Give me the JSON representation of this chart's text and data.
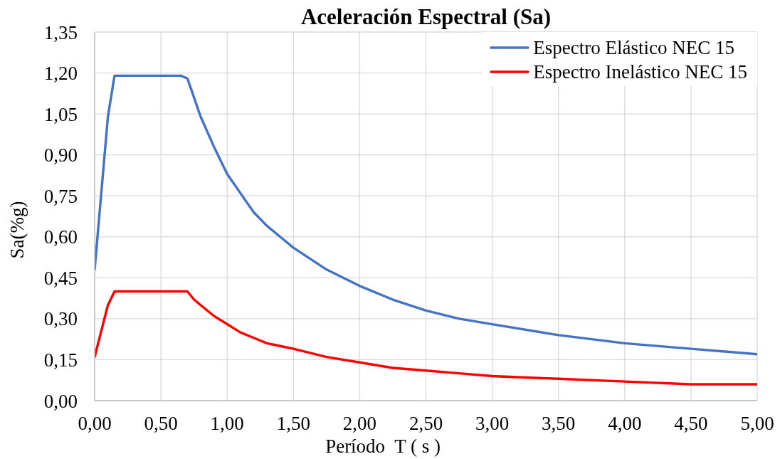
{
  "chart_data": {
    "type": "line",
    "title": "Aceleración Espectral (Sa)",
    "xlabel": "Período  T ( s )",
    "ylabel": "Sa(%g)",
    "x": [
      0,
      0.1,
      0.15,
      0.3,
      0.5,
      0.65,
      0.7,
      0.75,
      0.8,
      0.9,
      1.0,
      1.1,
      1.2,
      1.3,
      1.4,
      1.5,
      1.75,
      2.0,
      2.25,
      2.5,
      2.75,
      3.0,
      3.5,
      4.0,
      4.5,
      5.0
    ],
    "series": [
      {
        "name": "Espectro Elástico NEC 15",
        "color": "#4472c4",
        "values": [
          0.48,
          1.04,
          1.19,
          1.19,
          1.19,
          1.19,
          1.18,
          1.11,
          1.04,
          0.93,
          0.83,
          0.76,
          0.69,
          0.64,
          0.6,
          0.56,
          0.48,
          0.42,
          0.37,
          0.33,
          0.3,
          0.28,
          0.24,
          0.21,
          0.19,
          0.17
        ]
      },
      {
        "name": "Espectro Inelástico NEC 15",
        "color": "#ff0000",
        "values": [
          0.16,
          0.35,
          0.4,
          0.4,
          0.4,
          0.4,
          0.4,
          0.37,
          0.35,
          0.31,
          0.28,
          0.25,
          0.23,
          0.21,
          0.2,
          0.19,
          0.16,
          0.14,
          0.12,
          0.11,
          0.1,
          0.09,
          0.08,
          0.07,
          0.06,
          0.06
        ]
      }
    ],
    "xlim": [
      0,
      5
    ],
    "xticks": [
      {
        "value": 0,
        "label": "0,00"
      },
      {
        "value": 0.5,
        "label": "0,50"
      },
      {
        "value": 1,
        "label": "1,00"
      },
      {
        "value": 1.5,
        "label": "1,50"
      },
      {
        "value": 2,
        "label": "2,00"
      },
      {
        "value": 2.5,
        "label": "2,50"
      },
      {
        "value": 3,
        "label": "3,00"
      },
      {
        "value": 3.5,
        "label": "3,50"
      },
      {
        "value": 4,
        "label": "4,00"
      },
      {
        "value": 4.5,
        "label": "4,50"
      },
      {
        "value": 5,
        "label": "5,00"
      }
    ],
    "ylim": [
      0,
      1.35
    ],
    "yticks": [
      {
        "value": 0,
        "label": "0,00"
      },
      {
        "value": 0.15,
        "label": "0,15"
      },
      {
        "value": 0.3,
        "label": "0,30"
      },
      {
        "value": 0.45,
        "label": "0,45"
      },
      {
        "value": 0.6,
        "label": "0,60"
      },
      {
        "value": 0.75,
        "label": "0,75"
      },
      {
        "value": 0.9,
        "label": "0,90"
      },
      {
        "value": 1.05,
        "label": "1,05"
      },
      {
        "value": 1.2,
        "label": "1,20"
      },
      {
        "value": 1.35,
        "label": "1,35"
      }
    ],
    "grid": true,
    "legend": "top right",
    "marker": "none",
    "line_style": "solid"
  }
}
